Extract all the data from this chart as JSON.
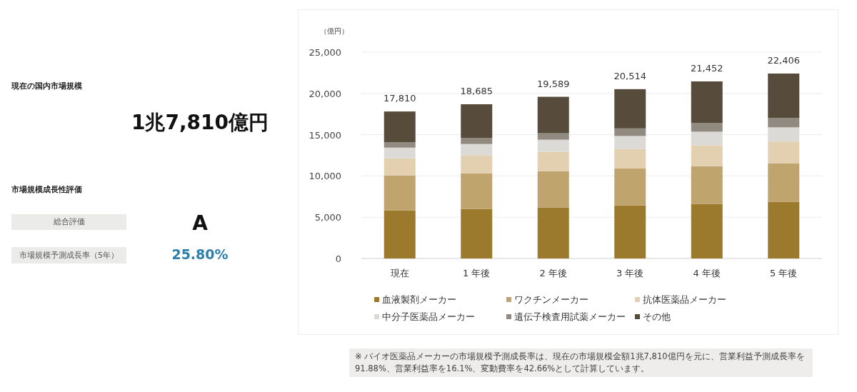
{
  "chart_data": [
    {
      "type": "other",
      "annotations": [
        "現在の国内市場規模",
        "1兆7,810億円",
        "市場規模成長性評価",
        "総合評価",
        "A",
        "市場規模予測成長率（5年）",
        "25.80%"
      ]
    },
    {
      "type": "bar",
      "stacked": true,
      "ylabel": "（億円）",
      "categories": [
        "現在",
        "1 年後",
        "2 年後",
        "3 年後",
        "4 年後",
        "5 年後"
      ],
      "series": [
        {
          "name": "血液製剤メーカー",
          "color": "#9b7a2e",
          "values": [
            5810,
            5980,
            6190,
            6420,
            6620,
            6850
          ]
        },
        {
          "name": "ワクチンメーカー",
          "color": "#c0a46e",
          "values": [
            4260,
            4350,
            4400,
            4510,
            4570,
            4690
          ]
        },
        {
          "name": "抗体医薬品メーカー",
          "color": "#e3d0b0",
          "values": [
            2070,
            2190,
            2330,
            2330,
            2530,
            2620
          ]
        },
        {
          "name": "中分子医薬品メーカー",
          "color": "#dcdad7",
          "values": [
            1290,
            1350,
            1470,
            1580,
            1640,
            1730
          ]
        },
        {
          "name": "遺伝子検査用試薬メーカー",
          "color": "#918a80",
          "values": [
            660,
            750,
            780,
            920,
            1040,
            1120
          ]
        },
        {
          "name": "その他",
          "color": "#574c3b",
          "values": [
            3720,
            4065,
            4419,
            4754,
            5052,
            5396
          ]
        }
      ],
      "totals": [
        "17,810",
        "18,685",
        "19,589",
        "20,514",
        "21,452",
        "22,406"
      ],
      "ylim": [
        0,
        25000
      ],
      "yticks": [
        {
          "value": 0,
          "label": "0"
        },
        {
          "value": 5000,
          "label": "5,000"
        },
        {
          "value": 10000,
          "label": "10,000"
        },
        {
          "value": 15000,
          "label": "15,000"
        },
        {
          "value": 20000,
          "label": "20,000"
        },
        {
          "value": 25000,
          "label": "25,000"
        }
      ],
      "grid": "y",
      "legend": "bottom",
      "annotations": [
        "※ バイオ医薬品メーカーの市場規模予測成長率は、現在の市場規模金額1兆7,810億円を元に、営業利益予測成長率を91.88%、営業利益率を16.1%、変動費率を42.66%として計算しています。"
      ]
    }
  ]
}
